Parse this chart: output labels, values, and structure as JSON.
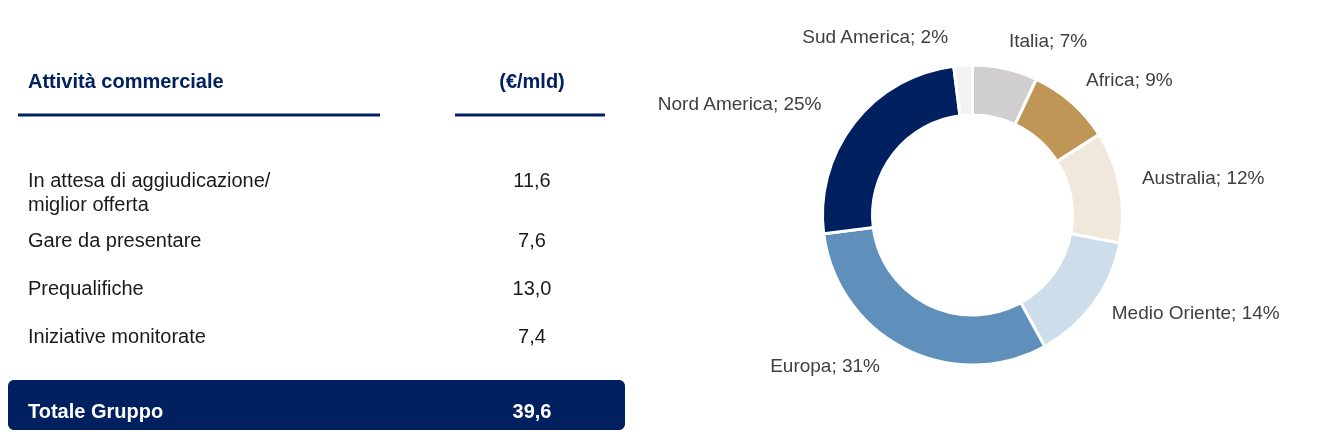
{
  "chart_data": [
    {
      "type": "other",
      "title": "Attività commerciale",
      "ylabel": "(€/mld)",
      "categories": [
        "In attesa di aggiudicazione/ miglior offerta",
        "Gare da presentare",
        "Prequalifiche",
        "Iniziative monitorate",
        "Totale Gruppo"
      ],
      "values": [
        11.6,
        7.6,
        13.0,
        7.4,
        39.6
      ],
      "value_labels": [
        "11,6",
        "7,6",
        "13,0",
        "7,4",
        "39,6"
      ],
      "color": "#002060"
    },
    {
      "type": "donut",
      "categories": [
        "Italia",
        "Africa",
        "Australia",
        "Medio Oriente",
        "Europa",
        "Nord America",
        "Sud America"
      ],
      "values": [
        7,
        9,
        12,
        14,
        31,
        25,
        2
      ],
      "value_labels": [
        "7%",
        "9%",
        "12%",
        "14%",
        "31%",
        "25%",
        "2%"
      ],
      "colors": [
        "#d0cece",
        "#c09656",
        "#f0e8dc",
        "#cddde9",
        "#5f8fbb",
        "#002060",
        "#f2f2f2"
      ]
    }
  ]
}
